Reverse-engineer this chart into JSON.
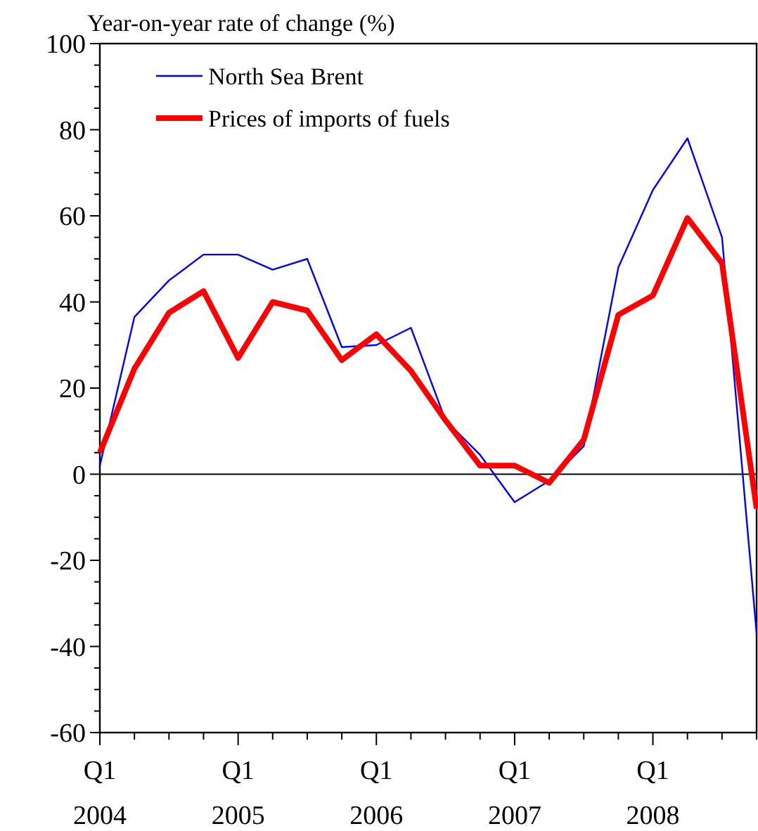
{
  "chart_data": {
    "type": "line",
    "ylabel": "Year-on-year rate of change (%)",
    "categories": [
      "Q1\n2004",
      null,
      null,
      null,
      "Q1\n2005",
      null,
      null,
      null,
      "Q1\n2006",
      null,
      null,
      null,
      "Q1\n2007",
      null,
      null,
      null,
      "Q1\n2008",
      null,
      null,
      null
    ],
    "series": [
      {
        "name": "North Sea Brent",
        "color": "#0000ff",
        "values": [
          2,
          36.5,
          45,
          51,
          51,
          47.5,
          50,
          29.5,
          30,
          34,
          12.5,
          4.5,
          -6.5,
          -1.5,
          6.5,
          48,
          66,
          78,
          55,
          -37
        ]
      },
      {
        "name": "Prices of imports of fuels",
        "color": "#ff0000",
        "values": [
          5,
          24.5,
          37.5,
          42.5,
          27,
          40,
          38,
          26.5,
          32.5,
          24,
          12.5,
          2,
          2,
          -2,
          8,
          37,
          41.5,
          59.5,
          49,
          -8
        ]
      }
    ],
    "ylim": [
      -60,
      100
    ],
    "yticks": [
      -60,
      -40,
      -20,
      0,
      20,
      40,
      60,
      80,
      100
    ],
    "ref_lines": [
      {
        "axis": "y",
        "value": 0,
        "color": "#000000"
      }
    ],
    "legend": "top left",
    "grid": false,
    "marker": "none",
    "line_style": "solid"
  }
}
